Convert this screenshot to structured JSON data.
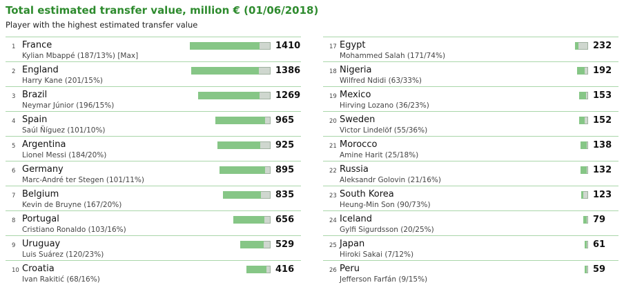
{
  "title": "Total estimated transfer value, million € (01/06/2018)",
  "subtitle": "Player with the highest estimated transfer value",
  "colors": {
    "title": "#2e8b2e",
    "bar_player": "#86c686",
    "bar_total": "#cfd7cf",
    "divider": "#a9d6a9"
  },
  "chart_data": {
    "type": "bar",
    "orientation": "horizontal",
    "title": "Total estimated transfer value, million € (01/06/2018)",
    "subtitle": "Player with the highest estimated transfer value",
    "rows": [
      {
        "rank": "1",
        "country": "France",
        "player": "Kylian Mbappé (187/13%) [Max]",
        "value": 1410,
        "value_label": "1410",
        "player_value": 187
      },
      {
        "rank": "2",
        "country": "England",
        "player": "Harry Kane (201/15%)",
        "value": 1386,
        "value_label": "1386",
        "player_value": 201
      },
      {
        "rank": "3",
        "country": "Brazil",
        "player": "Neymar Júnior (196/15%)",
        "value": 1269,
        "value_label": "1269",
        "player_value": 196
      },
      {
        "rank": "4",
        "country": "Spain",
        "player": "Saúl Ñíguez (101/10%)",
        "value": 965,
        "value_label": "965",
        "player_value": 101
      },
      {
        "rank": "5",
        "country": "Argentina",
        "player": "Lionel Messi (184/20%)",
        "value": 925,
        "value_label": "925",
        "player_value": 184
      },
      {
        "rank": "6",
        "country": "Germany",
        "player": "Marc-André ter Stegen (101/11%)",
        "value": 895,
        "value_label": "895",
        "player_value": 101
      },
      {
        "rank": "7",
        "country": "Belgium",
        "player": "Kevin de Bruyne (167/20%)",
        "value": 835,
        "value_label": "835",
        "player_value": 167
      },
      {
        "rank": "8",
        "country": "Portugal",
        "player": "Cristiano Ronaldo (103/16%)",
        "value": 656,
        "value_label": "656",
        "player_value": 103
      },
      {
        "rank": "9",
        "country": "Uruguay",
        "player": "Luis Suárez (120/23%)",
        "value": 529,
        "value_label": "529",
        "player_value": 120
      },
      {
        "rank": "10",
        "country": "Croatia",
        "player": "Ivan Rakitić (68/16%)",
        "value": 416,
        "value_label": "416",
        "player_value": 68
      },
      {
        "rank": "17",
        "country": "Egypt",
        "player": "Mohammed Salah (171/74%)",
        "value": 232,
        "value_label": "232",
        "player_value": 171
      },
      {
        "rank": "18",
        "country": "Nigeria",
        "player": "Wilfred Ndidi (63/33%)",
        "value": 192,
        "value_label": "192",
        "player_value": 63
      },
      {
        "rank": "19",
        "country": "Mexico",
        "player": "Hirving Lozano (36/23%)",
        "value": 153,
        "value_label": "153",
        "player_value": 36
      },
      {
        "rank": "20",
        "country": "Sweden",
        "player": "Victor Lindelöf (55/36%)",
        "value": 152,
        "value_label": "152",
        "player_value": 55
      },
      {
        "rank": "21",
        "country": "Morocco",
        "player": "Amine Harit (25/18%)",
        "value": 138,
        "value_label": "138",
        "player_value": 25
      },
      {
        "rank": "22",
        "country": "Russia",
        "player": "Aleksandr Golovin (21/16%)",
        "value": 132,
        "value_label": "132",
        "player_value": 21
      },
      {
        "rank": "23",
        "country": "South Korea",
        "player": "Heung-Min Son (90/73%)",
        "value": 123,
        "value_label": "123",
        "player_value": 90
      },
      {
        "rank": "24",
        "country": "Iceland",
        "player": "Gylfi Sigurdsson (20/25%)",
        "value": 79,
        "value_label": "79",
        "player_value": 20
      },
      {
        "rank": "25",
        "country": "Japan",
        "player": "Hiroki Sakai (7/12%)",
        "value": 61,
        "value_label": "61",
        "player_value": 7
      },
      {
        "rank": "26",
        "country": "Peru",
        "player": "Jefferson Farfán (9/15%)",
        "value": 59,
        "value_label": "59",
        "player_value": 9
      }
    ]
  }
}
